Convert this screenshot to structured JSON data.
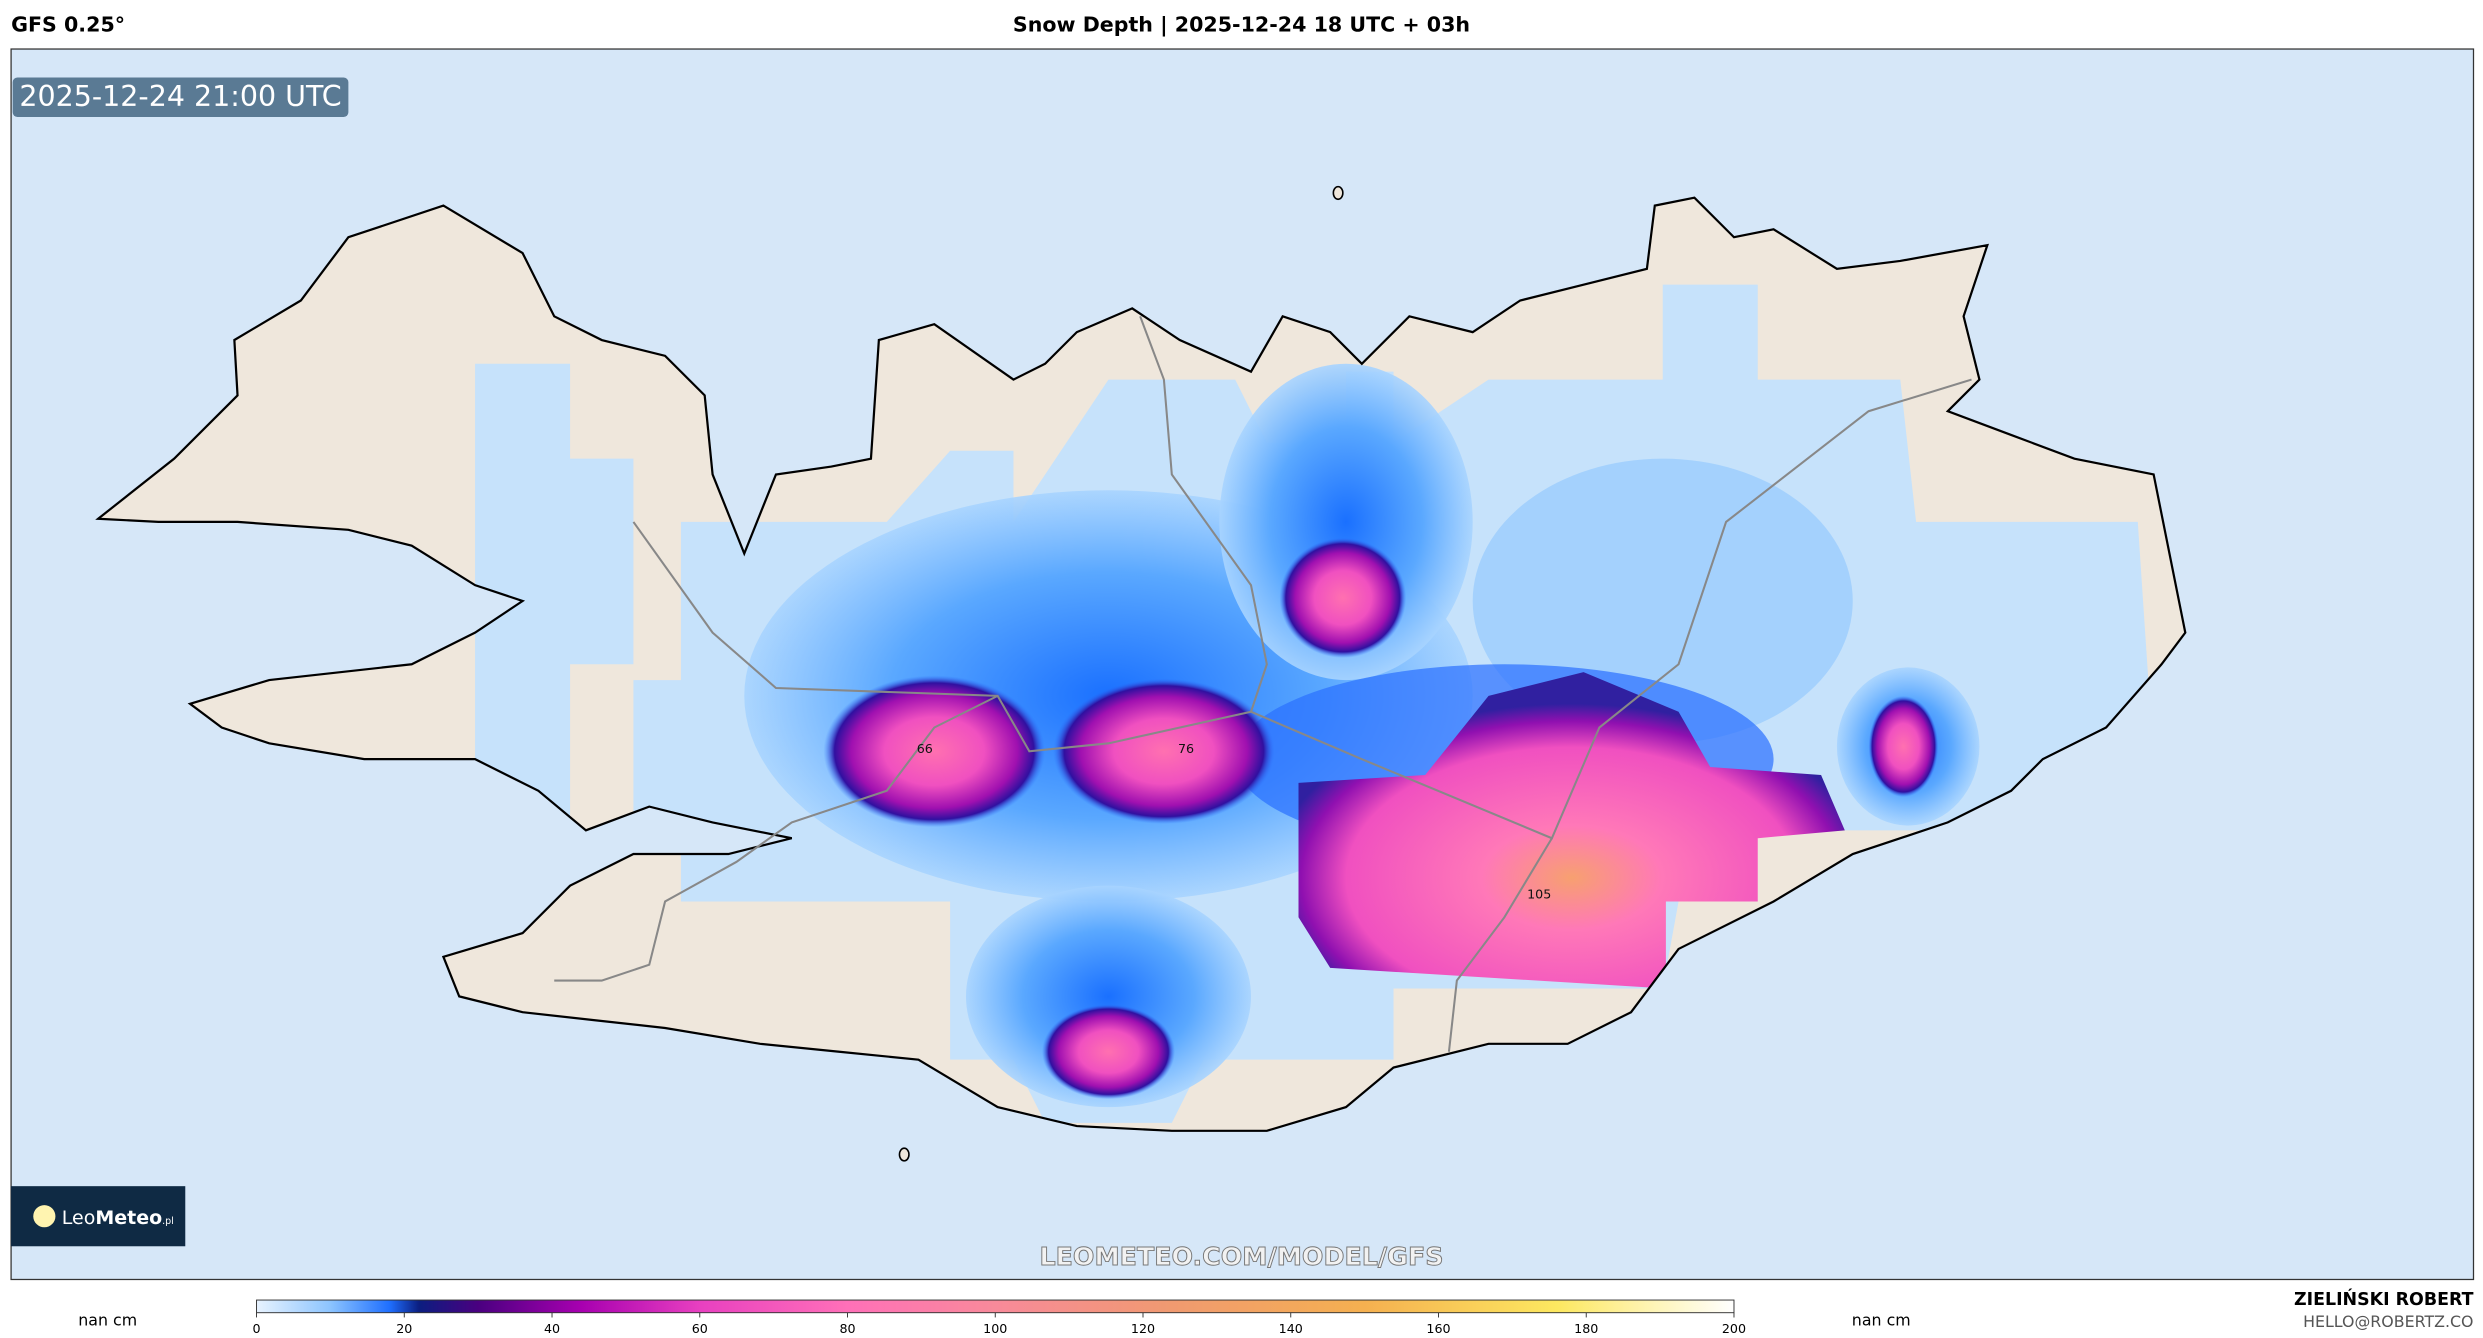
{
  "header": {
    "left": "GFS 0.25°",
    "title": "Snow Depth | 2025-12-24 18 UTC + 03h"
  },
  "map": {
    "timestamp": "2025-12-24 21:00 UTC",
    "watermark": "LEOMETEO.COM/MODEL/GFS",
    "labels": [
      {
        "value": 66
      },
      {
        "value": 76
      },
      {
        "value": 105
      }
    ],
    "logo": {
      "light": "Leo",
      "bold": "Meteo",
      "suffix": ".pl"
    }
  },
  "colorbar": {
    "range": [
      0,
      200
    ],
    "ticks": [
      0,
      20,
      40,
      60,
      80,
      100,
      120,
      140,
      160,
      180,
      200
    ],
    "left_label": "nan cm",
    "right_label": "nan cm"
  },
  "credits": {
    "name": "ZIELIŃSKI ROBERT",
    "email": "HELLO@ROBERTZ.CO"
  }
}
